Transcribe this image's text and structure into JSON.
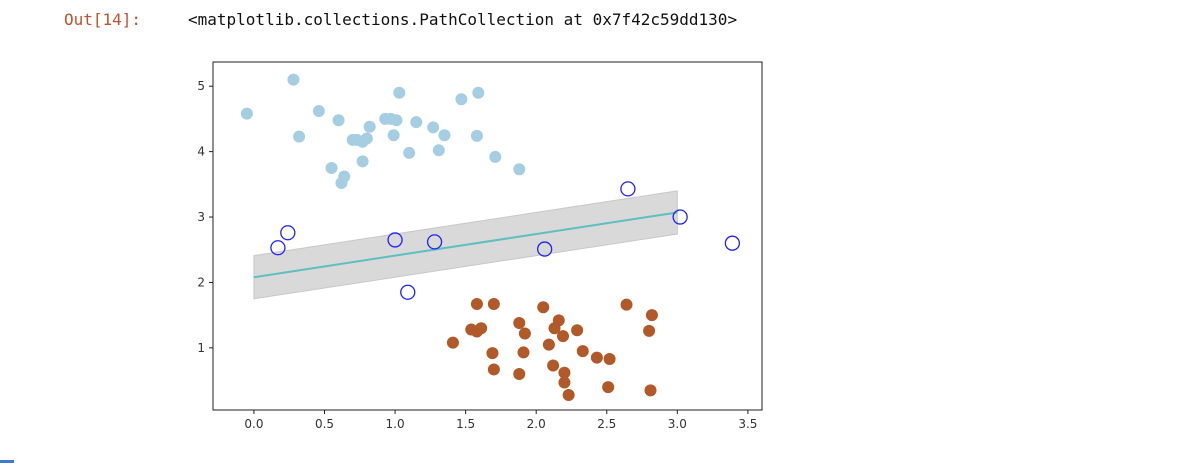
{
  "cell": {
    "prompt": "Out[14]:",
    "output_text": "<matplotlib.collections.PathCollection at 0x7f42c59dd130>"
  },
  "chart_data": {
    "type": "scatter",
    "xlim": [
      -0.29,
      3.6
    ],
    "ylim": [
      0.05,
      5.37
    ],
    "xticks": [
      "0.0",
      "0.5",
      "1.0",
      "1.5",
      "2.0",
      "2.5",
      "3.0",
      "3.5"
    ],
    "yticks": [
      "1",
      "2",
      "3",
      "4",
      "5"
    ],
    "grid": false,
    "colors": {
      "class_a": "#a6cee3",
      "class_b": "#b15928",
      "support_vectors": "#2222ee",
      "decision_line": "#5bc0be",
      "margin": "#d9d9d9"
    },
    "series": [
      {
        "points": [
          [
            -0.05,
            4.58
          ],
          [
            0.28,
            5.1
          ],
          [
            0.32,
            4.23
          ],
          [
            0.46,
            4.62
          ],
          [
            0.55,
            3.75
          ],
          [
            0.6,
            4.48
          ],
          [
            0.62,
            3.52
          ],
          [
            0.64,
            3.62
          ],
          [
            0.7,
            4.18
          ],
          [
            0.73,
            4.18
          ],
          [
            0.77,
            4.15
          ],
          [
            0.77,
            3.85
          ],
          [
            0.8,
            4.2
          ],
          [
            0.82,
            4.38
          ],
          [
            0.93,
            4.5
          ],
          [
            0.97,
            4.5
          ],
          [
            0.99,
            4.25
          ],
          [
            1.01,
            4.48
          ],
          [
            1.03,
            4.9
          ],
          [
            1.1,
            3.98
          ],
          [
            1.15,
            4.45
          ],
          [
            1.27,
            4.37
          ],
          [
            1.31,
            4.02
          ],
          [
            1.35,
            4.25
          ],
          [
            1.47,
            4.8
          ],
          [
            1.58,
            4.24
          ],
          [
            1.59,
            4.9
          ],
          [
            1.71,
            3.92
          ],
          [
            1.88,
            3.73
          ]
        ]
      },
      {
        "points": [
          [
            1.41,
            1.08
          ],
          [
            1.54,
            1.28
          ],
          [
            1.58,
            1.25
          ],
          [
            1.61,
            1.3
          ],
          [
            1.58,
            1.67
          ],
          [
            1.7,
            1.67
          ],
          [
            1.69,
            0.92
          ],
          [
            1.7,
            0.67
          ],
          [
            1.88,
            1.38
          ],
          [
            1.92,
            1.22
          ],
          [
            1.88,
            0.6
          ],
          [
            1.91,
            0.93
          ],
          [
            2.05,
            1.62
          ],
          [
            2.09,
            1.05
          ],
          [
            2.13,
            1.3
          ],
          [
            2.16,
            1.42
          ],
          [
            2.19,
            1.18
          ],
          [
            2.12,
            0.73
          ],
          [
            2.2,
            0.62
          ],
          [
            2.2,
            0.47
          ],
          [
            2.23,
            0.28
          ],
          [
            2.29,
            1.27
          ],
          [
            2.33,
            0.95
          ],
          [
            2.43,
            0.85
          ],
          [
            2.52,
            0.83
          ],
          [
            2.51,
            0.4
          ],
          [
            2.64,
            1.66
          ],
          [
            2.8,
            1.26
          ],
          [
            2.82,
            1.5
          ],
          [
            2.81,
            0.35
          ]
        ]
      }
    ],
    "support_vectors": [
      [
        0.17,
        2.53
      ],
      [
        0.24,
        2.76
      ],
      [
        1.0,
        2.65
      ],
      [
        1.09,
        1.85
      ],
      [
        1.28,
        2.62
      ],
      [
        2.06,
        2.51
      ],
      [
        2.65,
        3.43
      ],
      [
        3.02,
        3.0
      ],
      [
        3.39,
        2.6
      ]
    ],
    "decision_line": {
      "x": [
        0,
        3
      ],
      "y": [
        2.08,
        3.07
      ],
      "margin": 0.33
    }
  }
}
